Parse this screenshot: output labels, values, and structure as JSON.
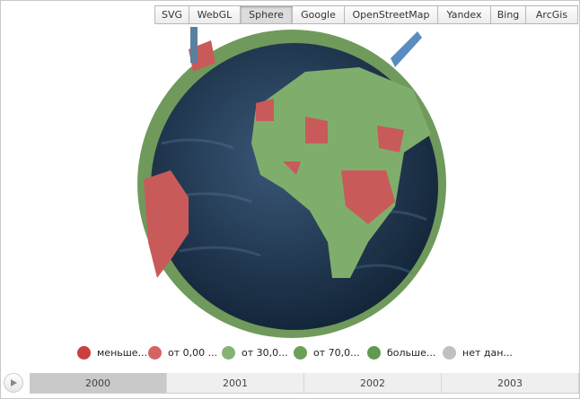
{
  "toolbar": {
    "buttons": [
      "SVG",
      "WebGL",
      "Sphere",
      "Google",
      "OpenStreetMap",
      "Yandex",
      "Bing",
      "ArcGis"
    ],
    "active": "Sphere"
  },
  "legend": {
    "items": [
      {
        "label": "меньше...",
        "color": "#c94040"
      },
      {
        "label": "от 0,00 ...",
        "color": "#d46464"
      },
      {
        "label": "от 30,0...",
        "color": "#86b276"
      },
      {
        "label": "от 70,0...",
        "color": "#6aa05a"
      },
      {
        "label": "больше...",
        "color": "#5f9a50"
      },
      {
        "label": "нет дан...",
        "color": "#c0c0c0"
      }
    ]
  },
  "timeline": {
    "play_icon": "play-icon",
    "years": [
      "2000",
      "2001",
      "2002",
      "2003"
    ],
    "selected": "2000"
  },
  "colors": {
    "ocean": "#1e3550",
    "land_green": "#7fae6c",
    "land_red": "#c95a5a"
  }
}
